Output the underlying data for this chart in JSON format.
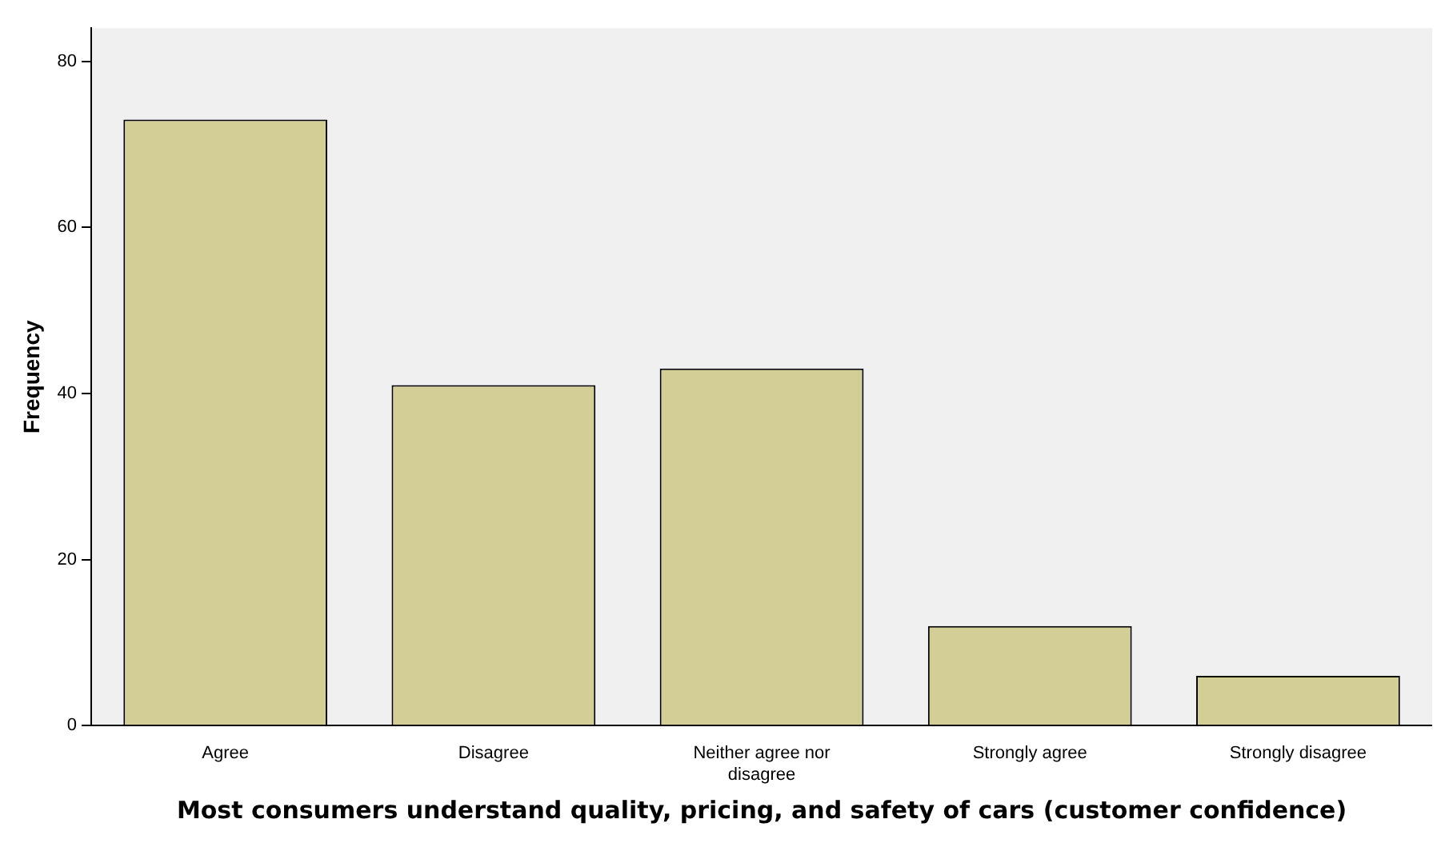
{
  "chart_data": {
    "type": "bar",
    "xlabel": "Most consumers understand quality, pricing, and safety of cars (customer confidence)",
    "ylabel": "Frequency",
    "categories": [
      "Agree",
      "Disagree",
      "Neither agree nor disagree",
      "Strongly agree",
      "Strongly disagree"
    ],
    "values": [
      73,
      41,
      43,
      12,
      6
    ],
    "color": "#d3cd96",
    "ylim": [
      0,
      84
    ],
    "yticks": [
      0,
      20,
      40,
      60,
      80
    ],
    "grid": false,
    "legend": false
  }
}
